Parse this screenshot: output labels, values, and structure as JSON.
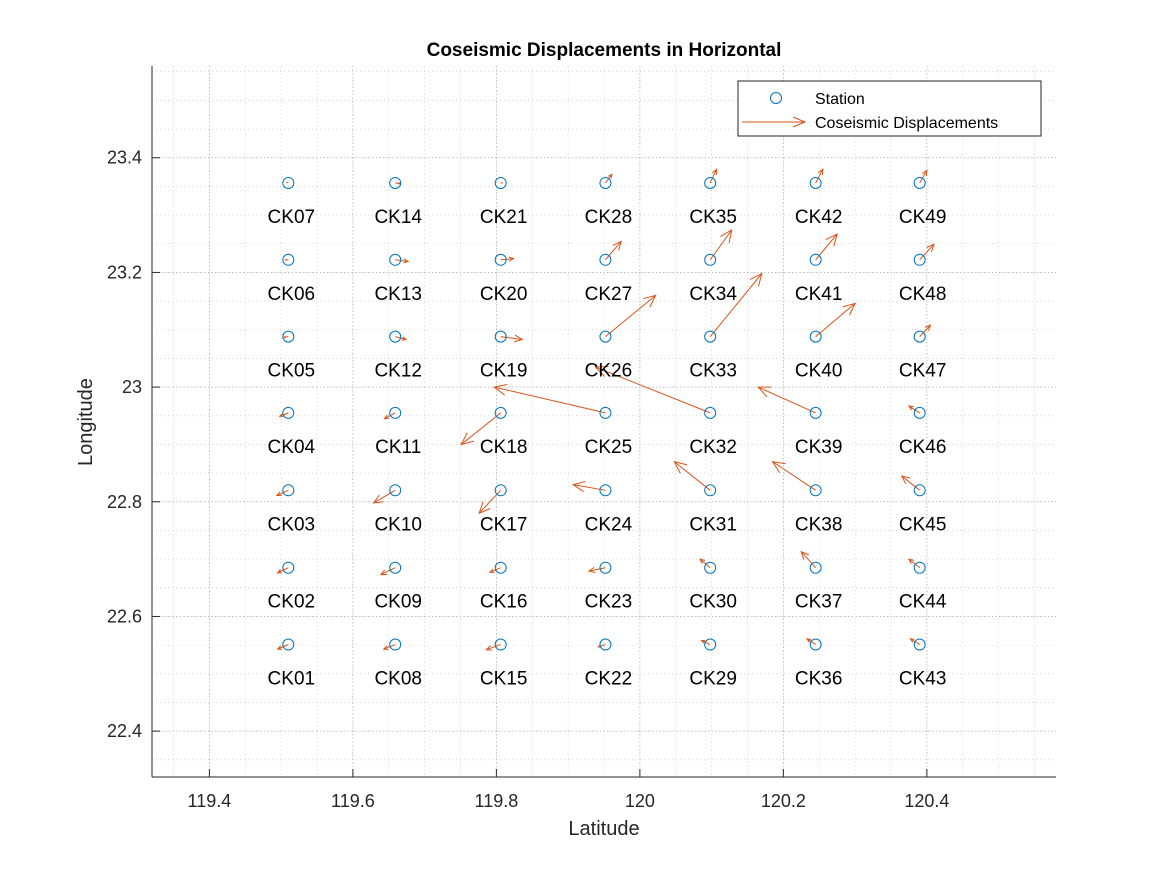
{
  "chart_data": {
    "type": "scatter",
    "title": "Coseismic Displacements in Horizontal",
    "xlabel": "Latitude",
    "ylabel": "Longitude",
    "xlim": [
      119.32,
      120.58
    ],
    "ylim": [
      22.32,
      23.56
    ],
    "xticks": [
      119.4,
      119.6,
      119.8,
      120,
      120.2,
      120.4
    ],
    "yticks": [
      22.4,
      22.6,
      22.8,
      23,
      23.2,
      23.4
    ],
    "xticklabels": [
      "119.4",
      "119.6",
      "119.8",
      "120",
      "120.2",
      "120.4"
    ],
    "yticklabels": [
      "22.4",
      "22.6",
      "22.8",
      "23",
      "23.2",
      "23.4"
    ],
    "grid": true,
    "minor_grid": true,
    "legend": {
      "location": "top-right",
      "entries": [
        {
          "label": "Station",
          "marker": "circle",
          "color": "#0072BD"
        },
        {
          "label": "Coseismic Displacements",
          "marker": "arrow",
          "color": "#D95319"
        }
      ]
    },
    "colors": {
      "station": "#0072BD",
      "displacement": "#D95319",
      "grid": "#bdbdbd"
    },
    "stations": [
      {
        "name": "CK01",
        "lon": 119.51,
        "lat": 22.551,
        "de": -0.015,
        "dn": -0.008
      },
      {
        "name": "CK02",
        "lon": 119.51,
        "lat": 22.685,
        "de": -0.015,
        "dn": -0.009
      },
      {
        "name": "CK03",
        "lon": 119.51,
        "lat": 22.82,
        "de": -0.016,
        "dn": -0.009
      },
      {
        "name": "CK04",
        "lon": 119.51,
        "lat": 22.955,
        "de": -0.012,
        "dn": -0.006
      },
      {
        "name": "CK05",
        "lon": 119.51,
        "lat": 23.088,
        "de": -0.006,
        "dn": -0.001
      },
      {
        "name": "CK06",
        "lon": 119.51,
        "lat": 23.222,
        "de": -0.004,
        "dn": 0.0
      },
      {
        "name": "CK07",
        "lon": 119.51,
        "lat": 23.356,
        "de": -0.002,
        "dn": 0.001
      },
      {
        "name": "CK08",
        "lon": 119.659,
        "lat": 22.551,
        "de": -0.016,
        "dn": -0.008
      },
      {
        "name": "CK09",
        "lon": 119.659,
        "lat": 22.685,
        "de": -0.02,
        "dn": -0.012
      },
      {
        "name": "CK10",
        "lon": 119.659,
        "lat": 22.82,
        "de": -0.03,
        "dn": -0.022
      },
      {
        "name": "CK11",
        "lon": 119.659,
        "lat": 22.955,
        "de": -0.015,
        "dn": -0.01
      },
      {
        "name": "CK12",
        "lon": 119.659,
        "lat": 23.088,
        "de": 0.015,
        "dn": -0.005
      },
      {
        "name": "CK13",
        "lon": 119.659,
        "lat": 23.222,
        "de": 0.018,
        "dn": -0.003
      },
      {
        "name": "CK14",
        "lon": 119.659,
        "lat": 23.356,
        "de": 0.007,
        "dn": -0.001
      },
      {
        "name": "CK15",
        "lon": 119.806,
        "lat": 22.551,
        "de": -0.02,
        "dn": -0.009
      },
      {
        "name": "CK16",
        "lon": 119.806,
        "lat": 22.685,
        "de": -0.015,
        "dn": -0.008
      },
      {
        "name": "CK17",
        "lon": 119.806,
        "lat": 22.82,
        "de": -0.03,
        "dn": -0.04
      },
      {
        "name": "CK18",
        "lon": 119.806,
        "lat": 22.955,
        "de": -0.055,
        "dn": -0.055
      },
      {
        "name": "CK19",
        "lon": 119.806,
        "lat": 23.088,
        "de": 0.03,
        "dn": -0.005
      },
      {
        "name": "CK20",
        "lon": 119.806,
        "lat": 23.222,
        "de": 0.018,
        "dn": 0.002
      },
      {
        "name": "CK21",
        "lon": 119.806,
        "lat": 23.356,
        "de": 0.002,
        "dn": 0.0
      },
      {
        "name": "CK22",
        "lon": 119.952,
        "lat": 22.551,
        "de": -0.01,
        "dn": -0.004
      },
      {
        "name": "CK23",
        "lon": 119.952,
        "lat": 22.685,
        "de": -0.023,
        "dn": -0.006
      },
      {
        "name": "CK24",
        "lon": 119.952,
        "lat": 22.82,
        "de": -0.045,
        "dn": 0.01
      },
      {
        "name": "CK25",
        "lon": 119.952,
        "lat": 22.955,
        "de": -0.155,
        "dn": 0.045
      },
      {
        "name": "CK26",
        "lon": 119.952,
        "lat": 23.088,
        "de": 0.07,
        "dn": 0.072
      },
      {
        "name": "CK27",
        "lon": 119.952,
        "lat": 23.222,
        "de": 0.022,
        "dn": 0.032
      },
      {
        "name": "CK28",
        "lon": 119.952,
        "lat": 23.356,
        "de": 0.009,
        "dn": 0.015
      },
      {
        "name": "CK29",
        "lon": 120.098,
        "lat": 22.551,
        "de": -0.012,
        "dn": 0.007
      },
      {
        "name": "CK30",
        "lon": 120.098,
        "lat": 22.685,
        "de": -0.014,
        "dn": 0.015
      },
      {
        "name": "CK31",
        "lon": 120.098,
        "lat": 22.82,
        "de": -0.05,
        "dn": 0.05
      },
      {
        "name": "CK32",
        "lon": 120.098,
        "lat": 22.955,
        "de": -0.16,
        "dn": 0.08
      },
      {
        "name": "CK33",
        "lon": 120.098,
        "lat": 23.088,
        "de": 0.072,
        "dn": 0.11
      },
      {
        "name": "CK34",
        "lon": 120.098,
        "lat": 23.222,
        "de": 0.03,
        "dn": 0.052
      },
      {
        "name": "CK35",
        "lon": 120.098,
        "lat": 23.356,
        "de": 0.009,
        "dn": 0.024
      },
      {
        "name": "CK36",
        "lon": 120.245,
        "lat": 22.551,
        "de": -0.012,
        "dn": 0.01
      },
      {
        "name": "CK37",
        "lon": 120.245,
        "lat": 22.685,
        "de": -0.02,
        "dn": 0.028
      },
      {
        "name": "CK38",
        "lon": 120.245,
        "lat": 22.82,
        "de": -0.06,
        "dn": 0.05
      },
      {
        "name": "CK39",
        "lon": 120.245,
        "lat": 22.955,
        "de": -0.08,
        "dn": 0.045
      },
      {
        "name": "CK40",
        "lon": 120.245,
        "lat": 23.088,
        "de": 0.055,
        "dn": 0.058
      },
      {
        "name": "CK41",
        "lon": 120.245,
        "lat": 23.222,
        "de": 0.03,
        "dn": 0.045
      },
      {
        "name": "CK42",
        "lon": 120.245,
        "lat": 23.356,
        "de": 0.01,
        "dn": 0.024
      },
      {
        "name": "CK43",
        "lon": 120.39,
        "lat": 22.551,
        "de": -0.013,
        "dn": 0.01
      },
      {
        "name": "CK44",
        "lon": 120.39,
        "lat": 22.685,
        "de": -0.015,
        "dn": 0.015
      },
      {
        "name": "CK45",
        "lon": 120.39,
        "lat": 22.82,
        "de": -0.025,
        "dn": 0.025
      },
      {
        "name": "CK46",
        "lon": 120.39,
        "lat": 22.955,
        "de": -0.015,
        "dn": 0.012
      },
      {
        "name": "CK47",
        "lon": 120.39,
        "lat": 23.088,
        "de": 0.015,
        "dn": 0.02
      },
      {
        "name": "CK48",
        "lon": 120.39,
        "lat": 23.222,
        "de": 0.02,
        "dn": 0.027
      },
      {
        "name": "CK49",
        "lon": 120.39,
        "lat": 23.356,
        "de": 0.01,
        "dn": 0.022
      }
    ]
  }
}
